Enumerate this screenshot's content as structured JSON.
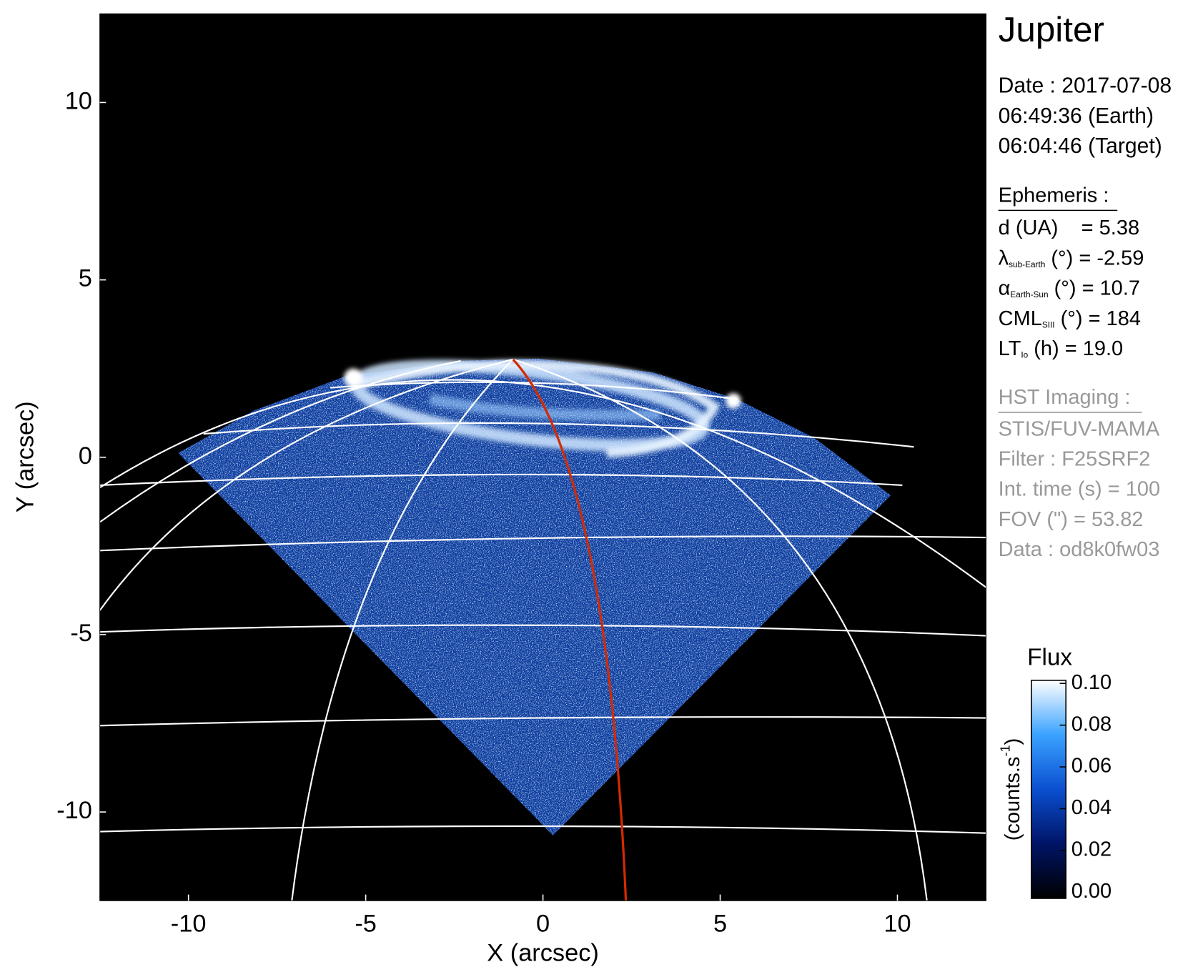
{
  "chart_data": {
    "type": "image",
    "title": "Jupiter",
    "xlabel": "X (arcsec)",
    "ylabel": "Y (arcsec)",
    "xlim": [
      -12.5,
      12.5
    ],
    "ylim": [
      -12.5,
      12.5
    ],
    "xticks": [
      -10,
      -5,
      0,
      5,
      10
    ],
    "yticks": [
      -10,
      -5,
      0,
      5,
      10
    ],
    "info": [
      "Date : 2017-07-08",
      "06:49:36 (Earth)",
      "06:04:46 (Target)"
    ],
    "ephemeris_title": "Ephemeris :",
    "ephemeris": [
      {
        "symbol": "d (UA)    = 5.38"
      },
      {
        "symbol": "λ",
        "subscript": "sub-Earth",
        "rest": " (°) = -2.59"
      },
      {
        "symbol": "α",
        "subscript": "Earth-Sun",
        "rest": " (°) = 10.7"
      },
      {
        "symbol": "CML",
        "subscript": "SIII",
        "rest": " (°) = 184"
      },
      {
        "symbol": "LT",
        "subscript": "Io",
        "rest": " (h) = 19.0"
      }
    ],
    "imaging_title": "HST Imaging :",
    "imaging": [
      "STIS/FUV-MAMA",
      "Filter : F25SRF2",
      "Int. time (s) = 100",
      "FOV (\") = 53.82",
      "Data : od8k0fw03"
    ],
    "colorbar": {
      "title": "Flux",
      "label": [
        "(counts.s",
        "-1",
        ")"
      ],
      "clim": [
        0,
        0.1
      ],
      "ticks": [
        {
          "value": 0,
          "label": "0.00"
        },
        {
          "value": 0.02,
          "label": "0.02"
        },
        {
          "value": 0.04,
          "label": "0.04"
        },
        {
          "value": 0.06,
          "label": "0.06"
        },
        {
          "value": 0.08,
          "label": "0.08"
        },
        {
          "value": 0.1,
          "label": "0.10"
        }
      ],
      "colormap": [
        "#000000",
        "#001466",
        "#0a4fd0",
        "#3aa2ff",
        "#ffffff"
      ]
    },
    "meridian_color": "#d42a00"
  }
}
